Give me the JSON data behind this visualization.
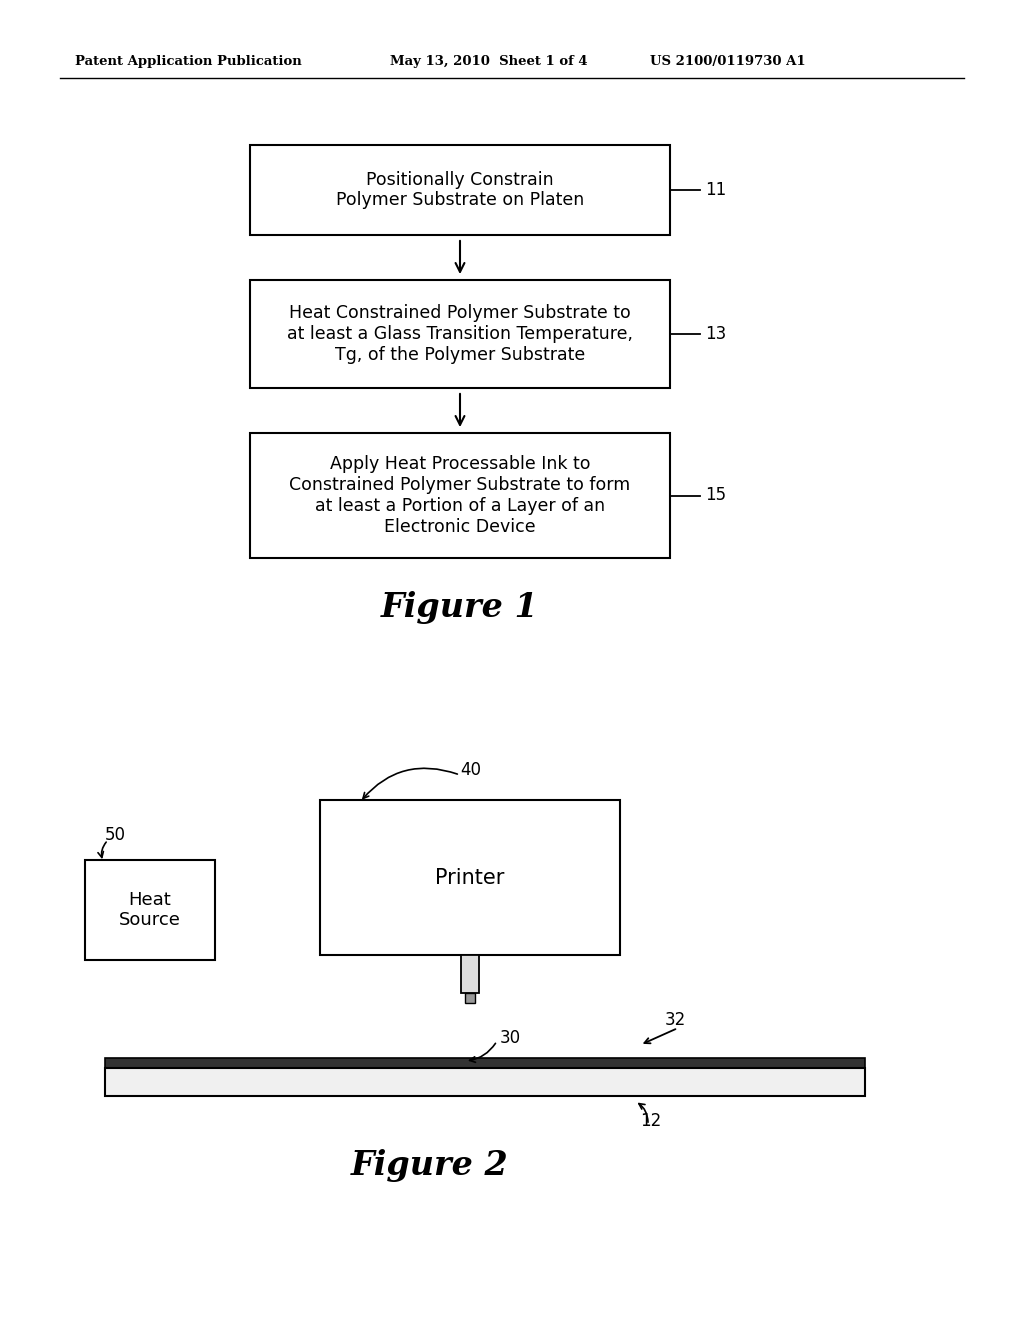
{
  "bg_color": "#ffffff",
  "header_left": "Patent Application Publication",
  "header_mid": "May 13, 2010  Sheet 1 of 4",
  "header_right": "US 2100/0119730 A1",
  "header_fontsize": 9.5,
  "fig1_title": "Figure 1",
  "fig2_title": "Figure 2",
  "box1_text": "Positionally Constrain\nPolymer Substrate on Platen",
  "box1_label": "11",
  "box2_text": "Heat Constrained Polymer Substrate to\nat least a Glass Transition Temperature,\nTg, of the Polymer Substrate",
  "box2_label": "13",
  "box3_text": "Apply Heat Processable Ink to\nConstrained Polymer Substrate to form\nat least a Portion of a Layer of an\nElectronic Device",
  "box3_label": "15",
  "printer_label": "40",
  "printer_text": "Printer",
  "heat_source_label": "50",
  "heat_source_text": "Heat\nSource",
  "platen_label": "30",
  "substrate_label": "12",
  "arrow32_label": "32"
}
